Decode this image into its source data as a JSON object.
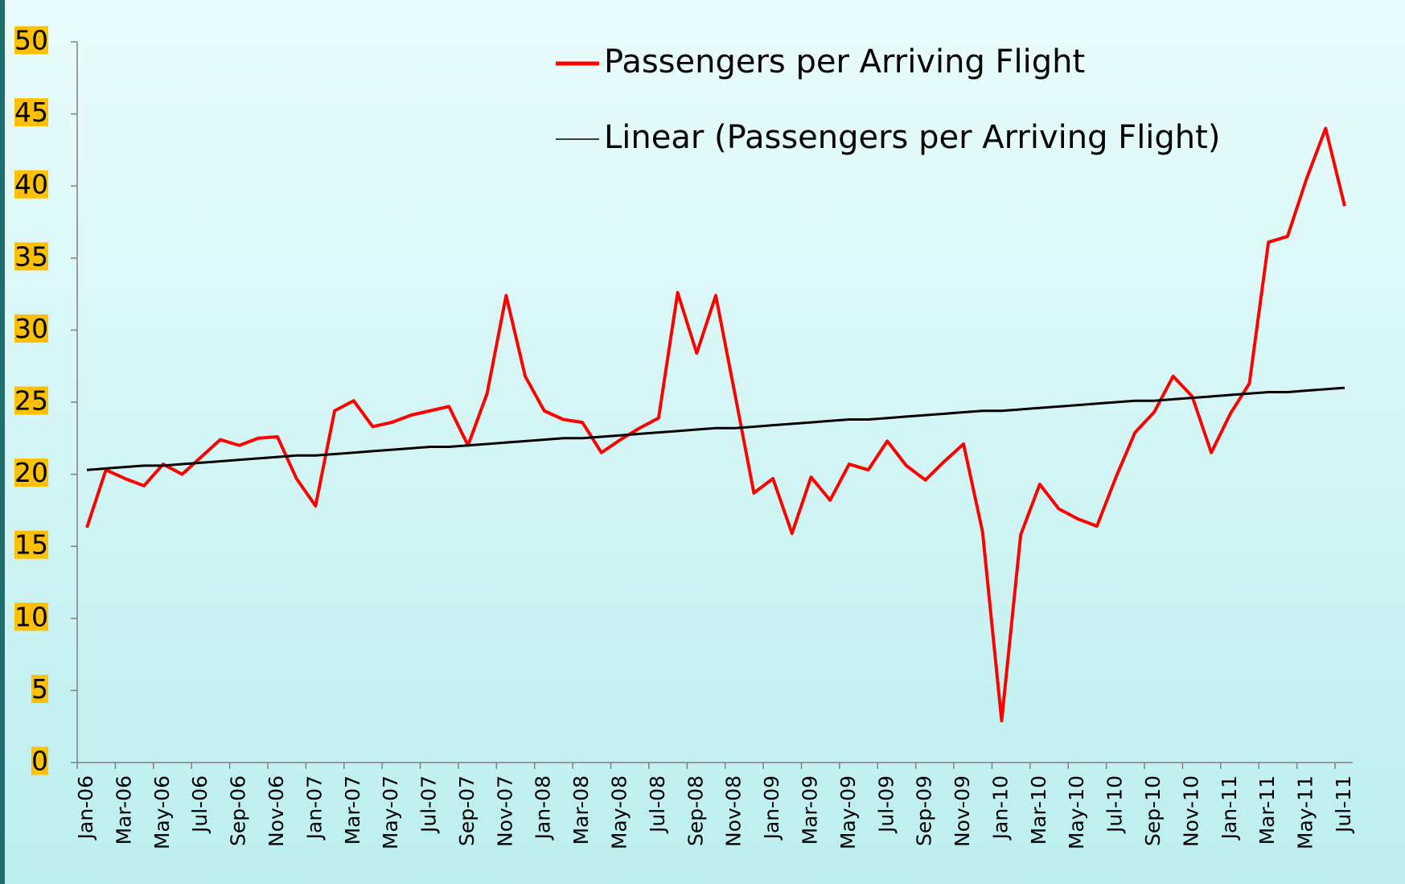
{
  "chart_data": {
    "type": "line",
    "categories": [
      "Jan-06",
      null,
      "Mar-06",
      null,
      "May-06",
      null,
      "Jul-06",
      null,
      "Sep-06",
      null,
      "Nov-06",
      null,
      "Jan-07",
      null,
      "Mar-07",
      null,
      "May-07",
      null,
      "Jul-07",
      null,
      "Sep-07",
      null,
      "Nov-07",
      null,
      "Jan-08",
      null,
      "Mar-08",
      null,
      "May-08",
      null,
      "Jul-08",
      null,
      "Sep-08",
      null,
      "Nov-08",
      null,
      "Jan-09",
      null,
      "Mar-09",
      null,
      "May-09",
      null,
      "Jul-09",
      null,
      "Sep-09",
      null,
      "Nov-09",
      null,
      "Jan-10",
      null,
      "Mar-10",
      null,
      "May-10",
      null,
      "Jul-10",
      null,
      "Sep-10",
      null,
      "Nov-10",
      null,
      "Jan-11",
      null,
      "Mar-11",
      null,
      "May-11",
      null,
      "Jul-11"
    ],
    "series": [
      {
        "name": "Passengers per Arriving Flight",
        "color": "#ff0000",
        "width": 4,
        "values": [
          16.3,
          20.3,
          19.7,
          19.2,
          20.7,
          20.0,
          21.2,
          22.4,
          22.0,
          22.5,
          22.6,
          19.7,
          17.8,
          24.4,
          25.1,
          23.3,
          23.6,
          24.1,
          24.4,
          24.7,
          22.0,
          25.6,
          32.4,
          26.8,
          24.4,
          23.8,
          23.6,
          21.5,
          22.4,
          23.2,
          23.9,
          32.6,
          28.4,
          32.4,
          25.6,
          18.7,
          19.7,
          15.9,
          19.8,
          18.2,
          20.7,
          20.3,
          22.3,
          20.6,
          19.6,
          20.9,
          22.1,
          16.0,
          2.9,
          15.8,
          19.3,
          17.6,
          16.9,
          16.4,
          19.8,
          22.9,
          24.3,
          26.8,
          25.4,
          21.5,
          24.2,
          26.3,
          36.1,
          36.5,
          40.5,
          44.0,
          38.6
        ]
      },
      {
        "name": "Linear (Passengers per Arriving Flight)",
        "color": "#000000",
        "width": 3,
        "values": [
          20.3,
          20.4,
          20.5,
          20.6,
          20.6,
          20.7,
          20.8,
          20.9,
          21.0,
          21.1,
          21.2,
          21.3,
          21.3,
          21.4,
          21.5,
          21.6,
          21.7,
          21.8,
          21.9,
          21.9,
          22.0,
          22.1,
          22.2,
          22.3,
          22.4,
          22.5,
          22.5,
          22.6,
          22.7,
          22.8,
          22.9,
          23.0,
          23.1,
          23.2,
          23.2,
          23.3,
          23.4,
          23.5,
          23.6,
          23.7,
          23.8,
          23.8,
          23.9,
          24.0,
          24.1,
          24.2,
          24.3,
          24.4,
          24.4,
          24.5,
          24.6,
          24.7,
          24.8,
          24.9,
          25.0,
          25.1,
          25.1,
          25.2,
          25.3,
          25.4,
          25.5,
          25.6,
          25.7,
          25.7,
          25.8,
          25.9,
          26.0
        ]
      }
    ],
    "ylim": [
      0,
      50
    ],
    "yticks": [
      0,
      5,
      10,
      15,
      20,
      25,
      30,
      35,
      40,
      45,
      50
    ],
    "tick_label_background": "#ffc000",
    "legend": "upper right"
  }
}
